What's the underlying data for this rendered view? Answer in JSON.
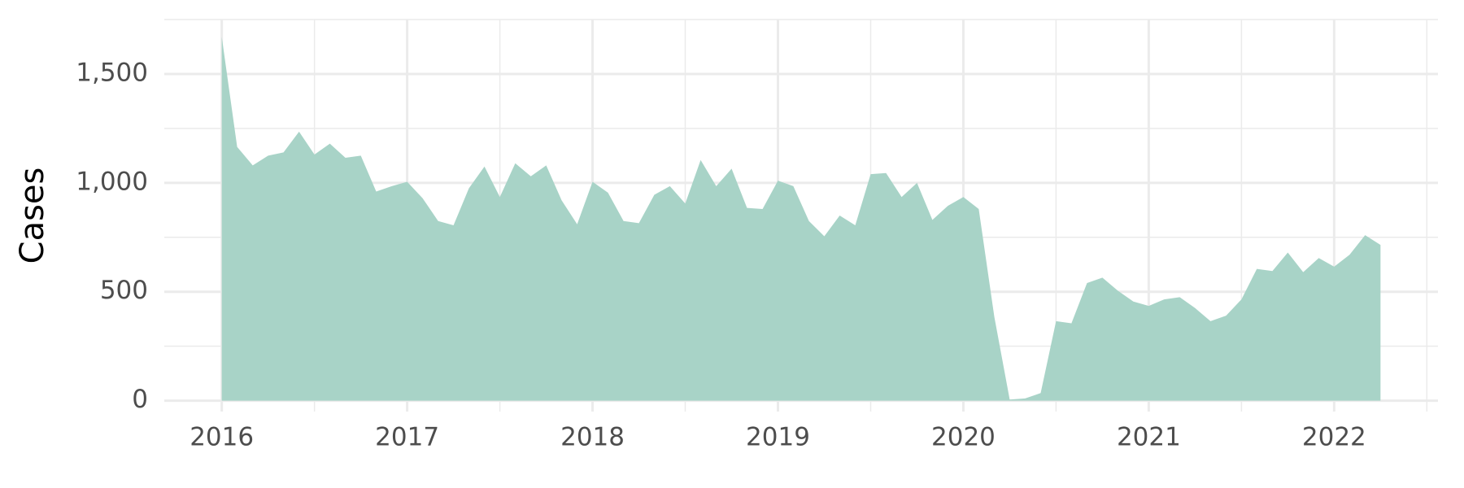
{
  "chart_data": {
    "type": "area",
    "y_label": "Cases",
    "x": [
      2016,
      2016.083,
      2016.167,
      2016.25,
      2016.333,
      2016.417,
      2016.5,
      2016.583,
      2016.667,
      2016.75,
      2016.833,
      2016.917,
      2017,
      2017.083,
      2017.167,
      2017.25,
      2017.333,
      2017.417,
      2017.5,
      2017.583,
      2017.667,
      2017.75,
      2017.833,
      2017.917,
      2018,
      2018.083,
      2018.167,
      2018.25,
      2018.333,
      2018.417,
      2018.5,
      2018.583,
      2018.667,
      2018.75,
      2018.833,
      2018.917,
      2019,
      2019.083,
      2019.167,
      2019.25,
      2019.333,
      2019.417,
      2019.5,
      2019.583,
      2019.667,
      2019.75,
      2019.833,
      2019.917,
      2020,
      2020.083,
      2020.167,
      2020.25,
      2020.333,
      2020.417,
      2020.5,
      2020.583,
      2020.667,
      2020.75,
      2020.833,
      2020.917,
      2021,
      2021.083,
      2021.167,
      2021.25,
      2021.333,
      2021.417,
      2021.5,
      2021.583,
      2021.667,
      2021.75,
      2021.833,
      2021.917,
      2022,
      2022.083,
      2022.167,
      2022.25
    ],
    "values": [
      1670,
      1165,
      1080,
      1125,
      1140,
      1235,
      1130,
      1180,
      1115,
      1125,
      960,
      985,
      1005,
      930,
      825,
      805,
      975,
      1075,
      935,
      1090,
      1030,
      1080,
      920,
      810,
      1005,
      955,
      825,
      815,
      945,
      985,
      905,
      1105,
      985,
      1065,
      885,
      880,
      1010,
      985,
      825,
      755,
      850,
      805,
      1040,
      1045,
      935,
      1000,
      830,
      895,
      935,
      880,
      385,
      5,
      10,
      35,
      365,
      355,
      540,
      565,
      505,
      455,
      435,
      465,
      475,
      425,
      365,
      390,
      465,
      605,
      595,
      680,
      590,
      655,
      615,
      670,
      760,
      715
    ],
    "color": "#a6d2c6",
    "xlim": [
      2015.69,
      2022.56
    ],
    "xticks": [
      2016,
      2017,
      2018,
      2019,
      2020,
      2021,
      2022
    ],
    "ylim": [
      -50,
      1750
    ],
    "yticks": [
      0,
      500,
      {
        "value": 1000,
        "label": "1,000"
      },
      {
        "value": 1500,
        "label": "1,500"
      }
    ],
    "grid": true
  }
}
